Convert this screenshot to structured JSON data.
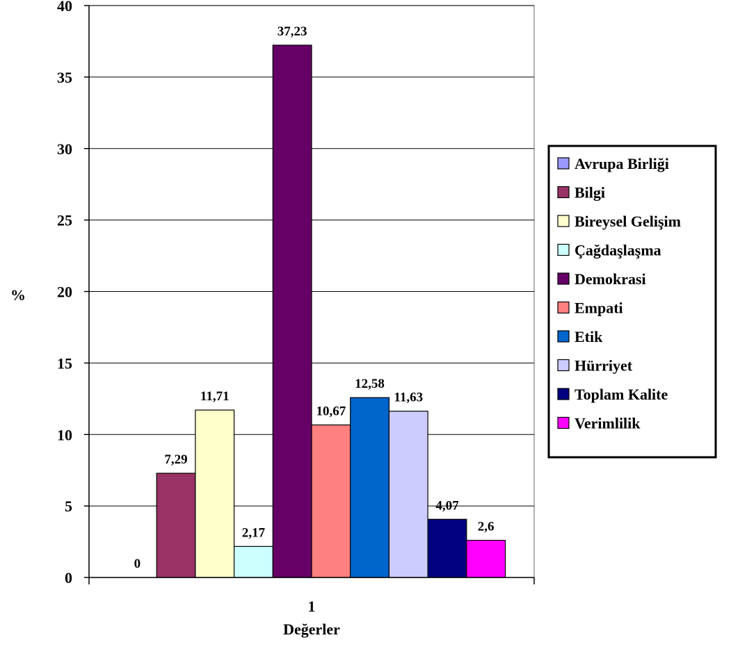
{
  "chart_data": {
    "type": "bar",
    "categories": [
      "1"
    ],
    "xlabel": "Değerler",
    "ylabel": "%",
    "ylim": [
      0,
      40
    ],
    "yticks": [
      0,
      5,
      10,
      15,
      20,
      25,
      30,
      35,
      40
    ],
    "grid": true,
    "legend_position": "right",
    "series": [
      {
        "name": "Avrupa Birliği",
        "values": [
          0
        ],
        "label": "0",
        "color": "#9999ff"
      },
      {
        "name": "Bilgi",
        "values": [
          7.29
        ],
        "label": "7,29",
        "color": "#993366"
      },
      {
        "name": "Bireysel Gelişim",
        "values": [
          11.71
        ],
        "label": "11,71",
        "color": "#ffffcc"
      },
      {
        "name": "Çağdaşlaşma",
        "values": [
          2.17
        ],
        "label": "2,17",
        "color": "#ccffff"
      },
      {
        "name": "Demokrasi",
        "values": [
          37.23
        ],
        "label": "37,23",
        "color": "#660066"
      },
      {
        "name": "Empati",
        "values": [
          10.67
        ],
        "label": "10,67",
        "color": "#ff8080"
      },
      {
        "name": "Etik",
        "values": [
          12.58
        ],
        "label": "12,58",
        "color": "#0066cc"
      },
      {
        "name": "Hürriyet",
        "values": [
          11.63
        ],
        "label": "11,63",
        "color": "#ccccff"
      },
      {
        "name": "Toplam Kalite",
        "values": [
          4.07
        ],
        "label": "4,07",
        "color": "#000080"
      },
      {
        "name": "Verimlilik",
        "values": [
          2.6
        ],
        "label": "2,6",
        "color": "#ff00ff"
      }
    ]
  }
}
